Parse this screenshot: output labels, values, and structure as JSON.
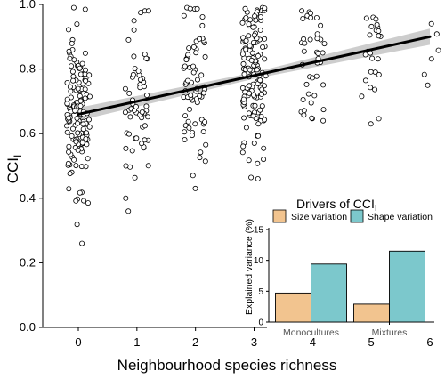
{
  "chart_data": [
    {
      "type": "scatter",
      "title": "",
      "xlabel": "Neighbourhood species richness",
      "ylabel_main": "CCI",
      "ylabel_sub": "I",
      "xlim": [
        0,
        6
      ],
      "ylim": [
        0,
        1
      ],
      "x_ticks": [
        0,
        1,
        2,
        3,
        4,
        5,
        6
      ],
      "x_tick_labels": [
        "0",
        "1",
        "2",
        "3",
        "4",
        "5",
        "6"
      ],
      "y_ticks": [
        0.0,
        0.2,
        0.4,
        0.6,
        0.8,
        1.0
      ],
      "y_tick_labels": [
        "0.0",
        "0.2",
        "0.4",
        "0.6",
        "0.8",
        "1.0"
      ],
      "grid": false,
      "points_per_group": [
        {
          "x": 0,
          "n": 150,
          "min": 0.26,
          "max": 0.99
        },
        {
          "x": 1,
          "n": 60,
          "min": 0.36,
          "max": 0.98
        },
        {
          "x": 2,
          "n": 70,
          "min": 0.43,
          "max": 0.99
        },
        {
          "x": 3,
          "n": 140,
          "min": 0.46,
          "max": 0.99
        },
        {
          "x": 4,
          "n": 40,
          "min": 0.64,
          "max": 0.98
        },
        {
          "x": 5,
          "n": 25,
          "min": 0.63,
          "max": 0.96
        },
        {
          "x": 6,
          "n": 6,
          "min": 0.75,
          "max": 0.94
        }
      ],
      "trend_line": {
        "x": [
          0,
          6
        ],
        "y": [
          0.66,
          0.9
        ]
      },
      "confidence_band": {
        "x": [
          0,
          3,
          6
        ],
        "lower": [
          0.64,
          0.77,
          0.875
        ],
        "upper": [
          0.68,
          0.79,
          0.925
        ]
      },
      "colors": {
        "points_fill": "#ffffff",
        "points_stroke": "#000000",
        "line": "#000000",
        "band": "#c8c8c8"
      }
    },
    {
      "type": "bar",
      "title_main": "Drivers of CCI",
      "title_sub": "I",
      "ylabel": "Explained variance (%)",
      "categories": [
        "Monocultures",
        "Mixtures"
      ],
      "series": [
        {
          "name": "Size variation",
          "values": [
            4.7,
            2.9
          ],
          "color": "#f2c48f"
        },
        {
          "name": "Shape variation",
          "values": [
            9.4,
            11.5
          ],
          "color": "#7cc8cc"
        }
      ],
      "ylim": [
        0,
        14
      ],
      "y_ticks": [
        0,
        5,
        10,
        15
      ],
      "y_tick_labels": [
        "0",
        "5",
        "10",
        "15"
      ],
      "legend_position": "top"
    }
  ]
}
